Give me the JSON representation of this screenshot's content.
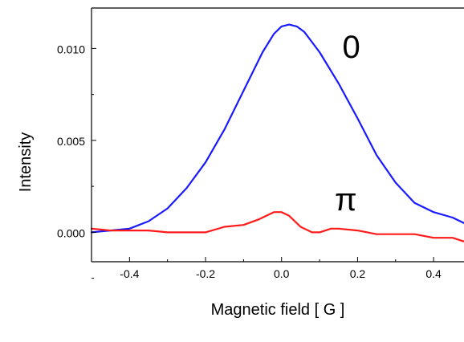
{
  "chart_data": {
    "type": "line",
    "xlabel": "Magnetic field [ G ]",
    "ylabel": "Intensity",
    "xlim": [
      -0.5,
      0.48
    ],
    "ylim": [
      -0.0016,
      0.0122
    ],
    "x_ticks": [
      -0.4,
      -0.2,
      0.0,
      0.2,
      0.4
    ],
    "x_tick_labels": [
      "-0.4",
      "-0.2",
      "0.0",
      "0.2",
      "0.4"
    ],
    "y_ticks": [
      0.0,
      0.005,
      0.01
    ],
    "y_tick_labels": [
      "0.000",
      "0.005",
      "0.010"
    ],
    "grid": false,
    "legend": "none",
    "series": [
      {
        "name": "0",
        "color": "#1a1aff",
        "x": [
          -0.5,
          -0.45,
          -0.4,
          -0.35,
          -0.3,
          -0.25,
          -0.2,
          -0.15,
          -0.1,
          -0.05,
          -0.02,
          0.0,
          0.02,
          0.04,
          0.06,
          0.1,
          0.15,
          0.2,
          0.25,
          0.3,
          0.35,
          0.4,
          0.45,
          0.48
        ],
        "y": [
          0.0,
          0.0001,
          0.0002,
          0.0006,
          0.0013,
          0.0024,
          0.0038,
          0.0056,
          0.0077,
          0.0098,
          0.0108,
          0.0112,
          0.0113,
          0.0112,
          0.0109,
          0.0098,
          0.0081,
          0.0062,
          0.0042,
          0.0027,
          0.0016,
          0.0011,
          0.0008,
          0.0005
        ]
      },
      {
        "name": "π",
        "color": "#ff1a1a",
        "x": [
          -0.5,
          -0.45,
          -0.4,
          -0.35,
          -0.3,
          -0.25,
          -0.2,
          -0.15,
          -0.1,
          -0.06,
          -0.02,
          0.0,
          0.02,
          0.05,
          0.08,
          0.1,
          0.13,
          0.15,
          0.2,
          0.25,
          0.3,
          0.35,
          0.4,
          0.45,
          0.48
        ],
        "y": [
          0.0002,
          0.0001,
          0.0001,
          0.0001,
          0.0,
          0.0,
          0.0,
          0.0003,
          0.0004,
          0.0007,
          0.0011,
          0.0011,
          0.0009,
          0.0003,
          0.0,
          0.0,
          0.0002,
          0.0002,
          0.0001,
          -0.0001,
          -0.0001,
          -0.0001,
          -0.0003,
          -0.0003,
          -0.0005
        ]
      }
    ],
    "annotations": [
      {
        "text": "0",
        "x": 0.16,
        "y": 0.0095
      },
      {
        "text": "π",
        "x": 0.14,
        "y": 0.0012
      }
    ]
  }
}
